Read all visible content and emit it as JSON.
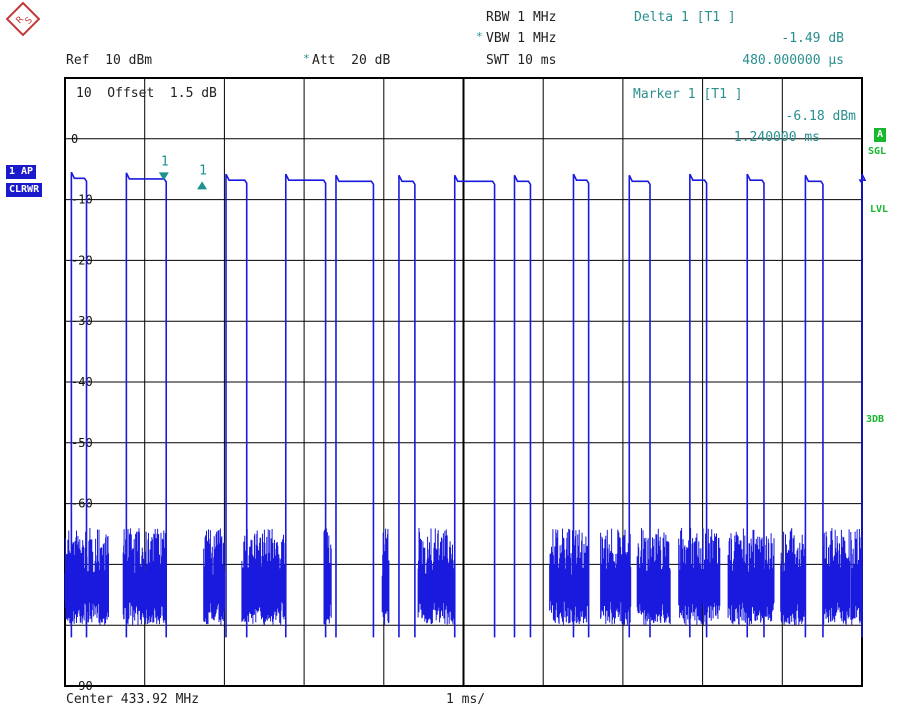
{
  "header": {
    "rbw": "RBW 1 MHz",
    "vbw_star": "*",
    "vbw": "VBW 1 MHz",
    "swt": "SWT 10 ms",
    "ref": "Ref  10 dBm",
    "att_star": "*",
    "att": "Att  20 dB"
  },
  "delta_marker": {
    "title": "Delta 1 [T1 ]",
    "level": "-1.49 dB",
    "time": "480.000000 µs"
  },
  "marker": {
    "title": "Marker 1 [T1 ]",
    "level": "-6.18 dBm",
    "time": "1.240000 ms"
  },
  "grid_top_label": "10  Offset  1.5 dB",
  "left_tags": {
    "trace": "1 AP",
    "mode": "CLRWR"
  },
  "right_tags": {
    "a": "A",
    "sgl": "SGL",
    "lvl": "LVL",
    "db3": "3DB"
  },
  "footer": {
    "center": "Center 433.92 MHz",
    "span": "1 ms/"
  },
  "colors": {
    "trace": "#1a1adf",
    "marker": "#1e9090",
    "grid": "#000000"
  },
  "icons": {
    "logo": "rohde-schwarz-logo-icon"
  },
  "chart_data": {
    "type": "line",
    "title": "",
    "xlabel": "1 ms/",
    "ylabel": "dBm",
    "xlim": [
      0,
      10
    ],
    "ylim": [
      -90,
      10
    ],
    "x_unit": "ms",
    "grid": true,
    "y_tick_labels": [
      "0",
      "-10",
      "-20",
      "-30",
      "-40",
      "-50",
      "-60",
      "-90"
    ],
    "y_ticks": [
      0,
      -10,
      -20,
      -30,
      -40,
      -50,
      -60,
      -90
    ],
    "noise_floor_range": [
      -76,
      -64
    ],
    "series": [
      {
        "pulses": [
          {
            "start": 0.08,
            "end": 0.27,
            "level": -6.5
          },
          {
            "start": 0.77,
            "end": 1.27,
            "level": -6.6
          },
          {
            "start": 2.02,
            "end": 2.28,
            "level": -6.8
          },
          {
            "start": 2.77,
            "end": 3.27,
            "level": -6.8
          },
          {
            "start": 3.4,
            "end": 3.87,
            "level": -7.0
          },
          {
            "start": 4.19,
            "end": 4.39,
            "level": -7.0
          },
          {
            "start": 4.89,
            "end": 5.39,
            "level": -7.0
          },
          {
            "start": 5.64,
            "end": 5.84,
            "level": -7.0
          },
          {
            "start": 6.38,
            "end": 6.57,
            "level": -6.8
          },
          {
            "start": 7.08,
            "end": 7.34,
            "level": -7.0
          },
          {
            "start": 7.84,
            "end": 8.05,
            "level": -6.8
          },
          {
            "start": 8.56,
            "end": 8.77,
            "level": -6.8
          },
          {
            "start": 9.29,
            "end": 9.51,
            "level": -7.0
          },
          {
            "start": 10.0,
            "end": 10.0,
            "level": -6.8
          }
        ],
        "noise_bursts": [
          [
            0.0,
            0.55
          ],
          [
            0.73,
            1.27
          ],
          [
            1.74,
            2.0
          ],
          [
            2.22,
            2.77
          ],
          [
            3.25,
            3.34
          ],
          [
            3.98,
            4.07
          ],
          [
            4.43,
            4.88
          ],
          [
            6.08,
            6.57
          ],
          [
            6.72,
            7.1
          ],
          [
            7.18,
            7.6
          ],
          [
            7.7,
            8.22
          ],
          [
            8.32,
            8.9
          ],
          [
            8.98,
            9.29
          ],
          [
            9.52,
            9.85
          ],
          [
            9.86,
            10.0
          ]
        ]
      }
    ],
    "markers": [
      {
        "label": "1",
        "x": 1.24,
        "y": -6.18,
        "shape": "down-triangle"
      },
      {
        "label": "1",
        "x": 1.72,
        "y": -7.67,
        "shape": "up-triangle"
      }
    ]
  }
}
